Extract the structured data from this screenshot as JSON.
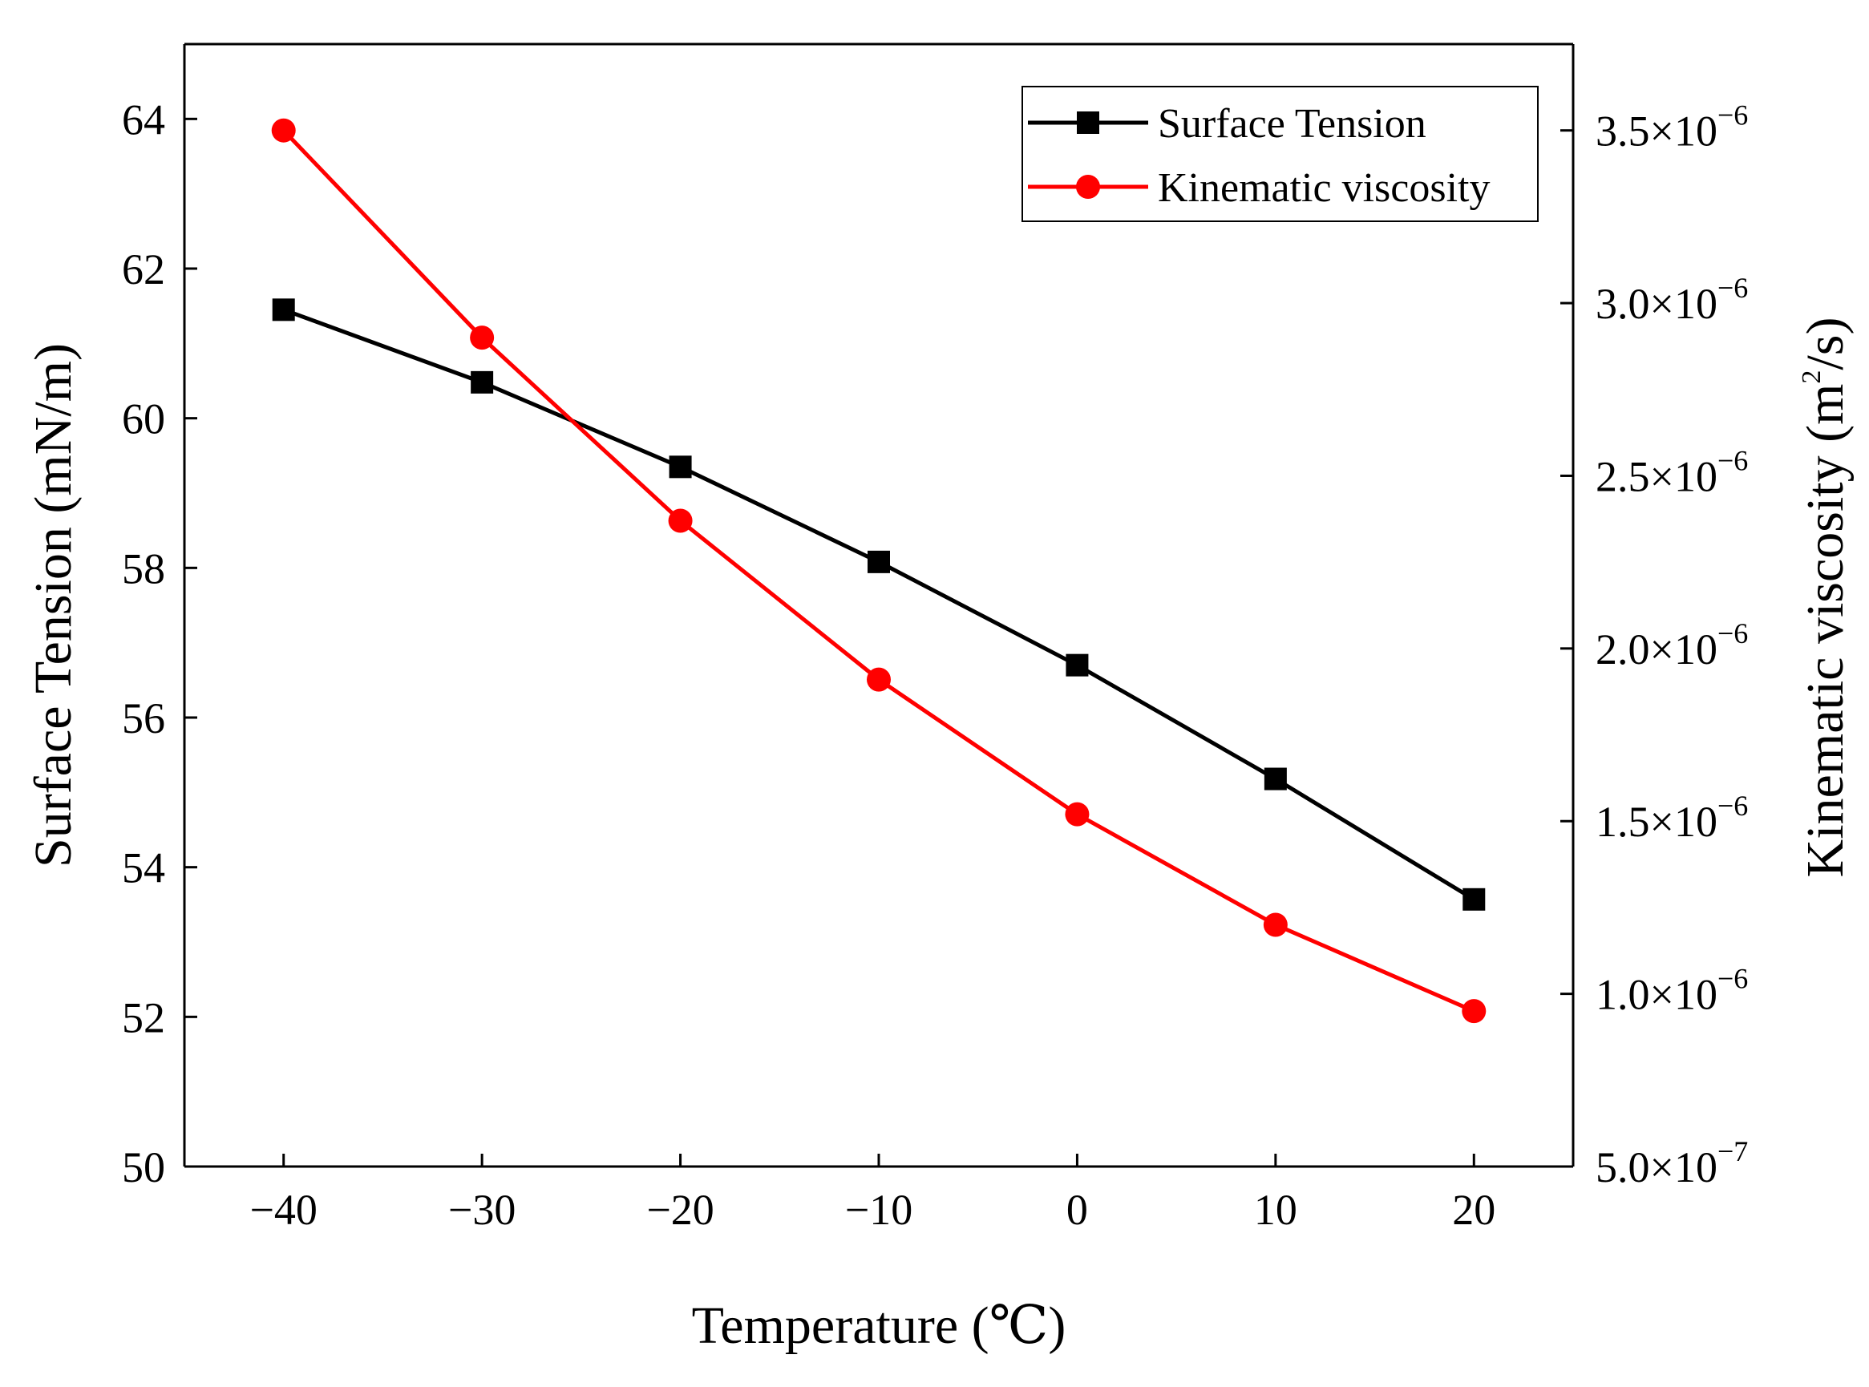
{
  "chart_data": {
    "type": "line",
    "x": [
      -40,
      -30,
      -20,
      -10,
      0,
      10,
      20
    ],
    "xlabel": "Temperature (℃)",
    "xlim": [
      -45,
      25
    ],
    "xticks": [
      -40,
      -30,
      -20,
      -10,
      0,
      10,
      20
    ],
    "xtick_labels": [
      "−40",
      "−30",
      "−20",
      "−10",
      "0",
      "10",
      "20"
    ],
    "y_left": {
      "label": "Surface Tension (mN/m)",
      "ylim": [
        50,
        65
      ],
      "ticks": [
        50,
        52,
        54,
        56,
        58,
        60,
        62,
        64
      ],
      "tick_labels": [
        "50",
        "52",
        "54",
        "56",
        "58",
        "60",
        "62",
        "64"
      ]
    },
    "y_right": {
      "label_main": "Kinematic viscosity (m",
      "label_sup": "2",
      "label_end": "/s)",
      "ylim": [
        5e-07,
        3.75e-06
      ],
      "ticks": [
        5e-07,
        1e-06,
        1.5e-06,
        2e-06,
        2.5e-06,
        3e-06,
        3.5e-06
      ],
      "tick_mantissa": [
        "5.0×10",
        "1.0×10",
        "1.5×10",
        "2.0×10",
        "2.5×10",
        "3.0×10",
        "3.5×10"
      ],
      "tick_exponent": [
        "−7",
        "−6",
        "−6",
        "−6",
        "−6",
        "−6",
        "−6"
      ]
    },
    "series": [
      {
        "name": "Surface Tension",
        "axis": "left",
        "marker": "square",
        "color": "#000000",
        "values": [
          61.45,
          60.48,
          59.35,
          58.08,
          56.7,
          55.18,
          53.57
        ]
      },
      {
        "name": "Kinematic viscosity",
        "axis": "right",
        "marker": "circle",
        "color": "#ff0000",
        "values": [
          3.5e-06,
          2.9e-06,
          2.37e-06,
          1.91e-06,
          1.52e-06,
          1.2e-06,
          9.5e-07
        ]
      }
    ],
    "legend": {
      "position": "top-right"
    }
  }
}
